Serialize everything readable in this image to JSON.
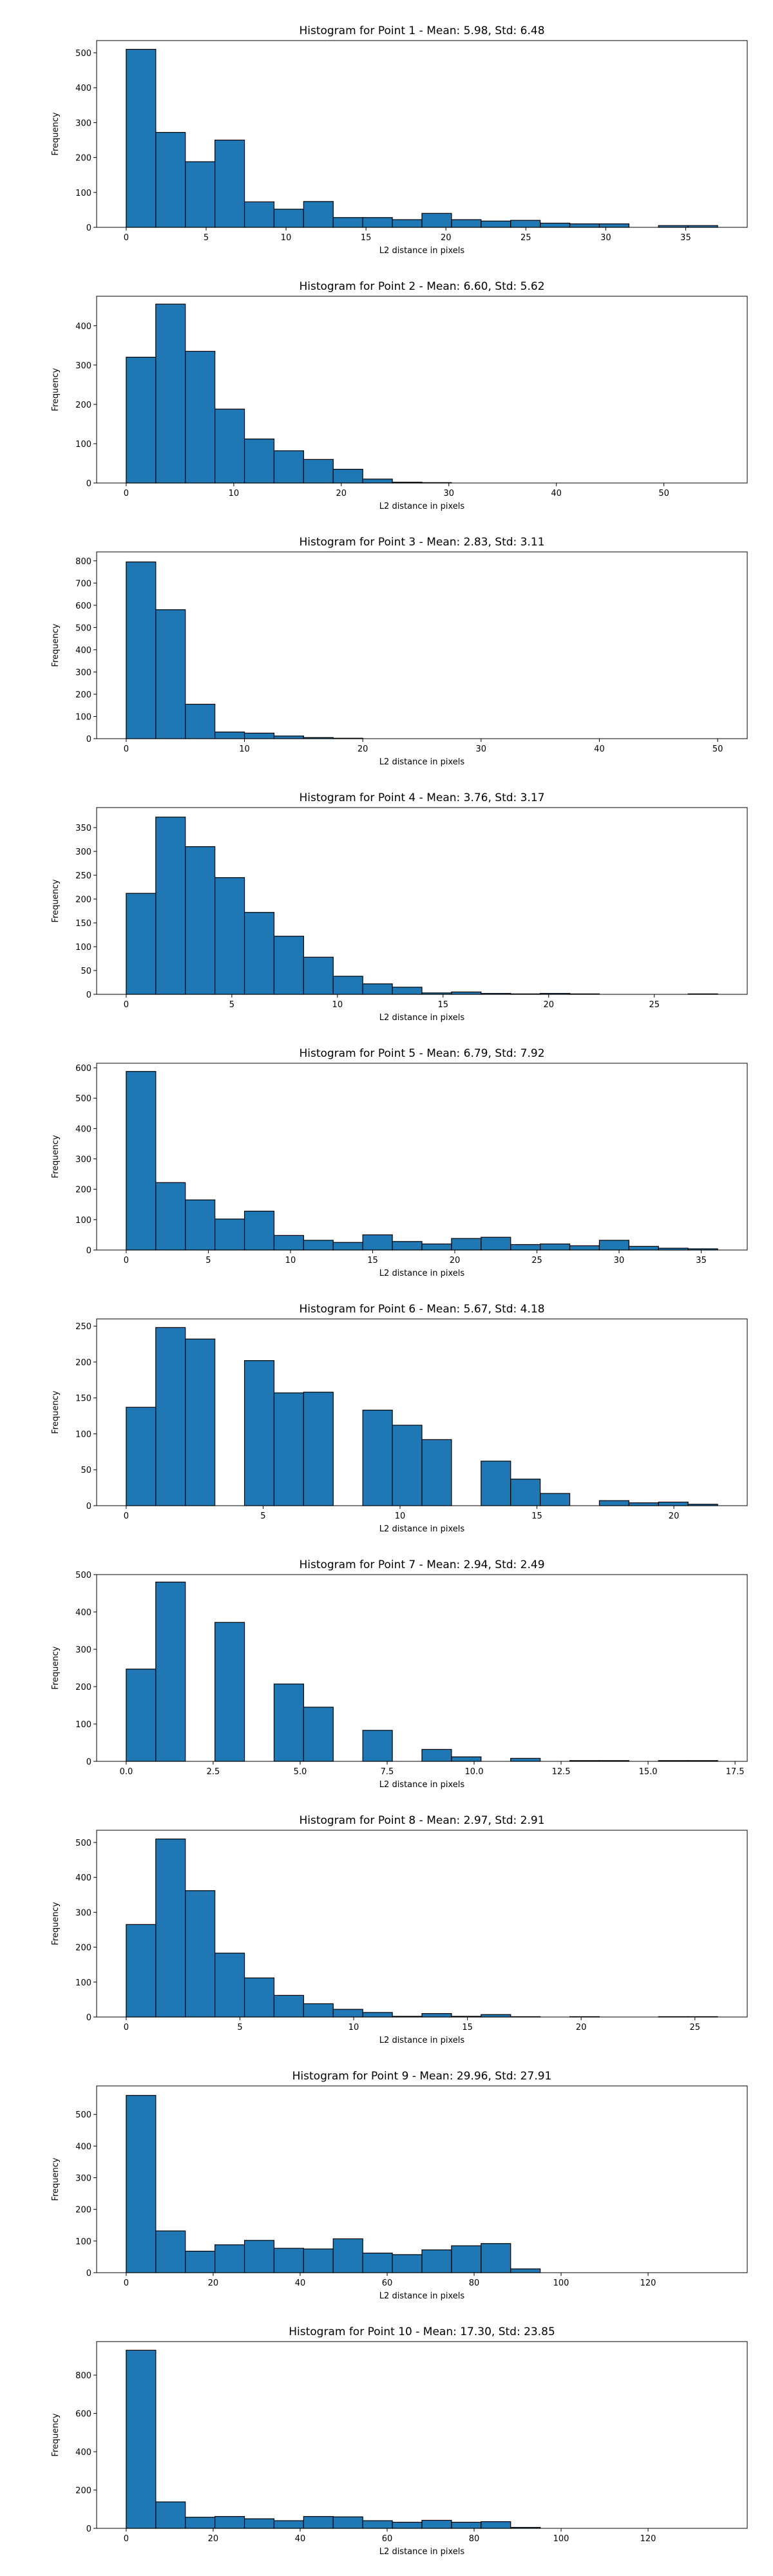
{
  "chart_data": [
    {
      "type": "bar",
      "title": "Histogram for Point 1 - Mean: 5.98, Std: 6.48",
      "xlabel": "L2 distance in pixels",
      "ylabel": "Frequency",
      "xlim": [
        -1.85,
        38.85
      ],
      "ylim": [
        0,
        535
      ],
      "xticks": [
        0,
        5,
        10,
        15,
        20,
        25,
        30,
        35
      ],
      "xtick_labels": [
        "0",
        "5",
        "10",
        "15",
        "20",
        "25",
        "30",
        "35"
      ],
      "yticks": [
        0,
        100,
        200,
        300,
        400,
        500
      ],
      "ytick_labels": [
        "0",
        "100",
        "200",
        "300",
        "400",
        "500"
      ],
      "bin_start": 0,
      "bin_width": 1.85,
      "values": [
        510,
        272,
        188,
        250,
        73,
        52,
        74,
        28,
        28,
        22,
        40,
        22,
        18,
        20,
        12,
        10,
        10,
        0,
        5,
        5
      ]
    },
    {
      "type": "bar",
      "title": "Histogram for Point 2 - Mean: 6.60, Std: 5.62",
      "xlabel": "L2 distance in pixels",
      "ylabel": "Frequency",
      "xlim": [
        -2.75,
        57.75
      ],
      "ylim": [
        0,
        475
      ],
      "xticks": [
        0,
        10,
        20,
        30,
        40,
        50
      ],
      "xtick_labels": [
        "0",
        "10",
        "20",
        "30",
        "40",
        "50"
      ],
      "yticks": [
        0,
        100,
        200,
        300,
        400
      ],
      "ytick_labels": [
        "0",
        "100",
        "200",
        "300",
        "400"
      ],
      "bin_start": 0,
      "bin_width": 2.75,
      "values": [
        320,
        455,
        335,
        188,
        112,
        82,
        60,
        35,
        10,
        2,
        1,
        0,
        0,
        0,
        0,
        0,
        0,
        0,
        0,
        0
      ]
    },
    {
      "type": "bar",
      "title": "Histogram for Point 3 - Mean: 2.83, Std: 3.11",
      "xlabel": "L2 distance in pixels",
      "ylabel": "Frequency",
      "xlim": [
        -2.5,
        52.5
      ],
      "ylim": [
        0,
        840
      ],
      "xticks": [
        0,
        10,
        20,
        30,
        40,
        50
      ],
      "xtick_labels": [
        "0",
        "10",
        "20",
        "30",
        "40",
        "50"
      ],
      "yticks": [
        0,
        100,
        200,
        300,
        400,
        500,
        600,
        700,
        800
      ],
      "ytick_labels": [
        "0",
        "100",
        "200",
        "300",
        "400",
        "500",
        "600",
        "700",
        "800"
      ],
      "bin_start": 0,
      "bin_width": 2.5,
      "values": [
        795,
        580,
        155,
        30,
        25,
        12,
        5,
        2,
        0,
        0,
        0,
        0,
        0,
        0,
        0,
        0,
        0,
        0,
        0,
        0
      ]
    },
    {
      "type": "bar",
      "title": "Histogram for Point 4 - Mean: 3.76, Std: 3.17",
      "xlabel": "L2 distance in pixels",
      "ylabel": "Frequency",
      "xlim": [
        -1.4,
        29.4
      ],
      "ylim": [
        0,
        392
      ],
      "xticks": [
        0,
        5,
        10,
        15,
        20,
        25
      ],
      "xtick_labels": [
        "0",
        "5",
        "10",
        "15",
        "20",
        "25"
      ],
      "yticks": [
        0,
        50,
        100,
        150,
        200,
        250,
        300,
        350
      ],
      "ytick_labels": [
        "0",
        "50",
        "100",
        "150",
        "200",
        "250",
        "300",
        "350"
      ],
      "bin_start": 0,
      "bin_width": 1.4,
      "values": [
        212,
        372,
        310,
        245,
        172,
        122,
        78,
        38,
        22,
        15,
        3,
        5,
        2,
        1,
        2,
        1,
        0,
        0,
        0,
        1
      ]
    },
    {
      "type": "bar",
      "title": "Histogram for Point 5 - Mean: 6.79, Std: 7.92",
      "xlabel": "L2 distance in pixels",
      "ylabel": "Frequency",
      "xlim": [
        -1.8,
        37.8
      ],
      "ylim": [
        0,
        615
      ],
      "xticks": [
        0,
        5,
        10,
        15,
        20,
        25,
        30,
        35
      ],
      "xtick_labels": [
        "0",
        "5",
        "10",
        "15",
        "20",
        "25",
        "30",
        "35"
      ],
      "yticks": [
        0,
        100,
        200,
        300,
        400,
        500,
        600
      ],
      "ytick_labels": [
        "0",
        "100",
        "200",
        "300",
        "400",
        "500",
        "600"
      ],
      "bin_start": 0,
      "bin_width": 1.8,
      "values": [
        588,
        222,
        165,
        102,
        128,
        48,
        32,
        25,
        50,
        28,
        20,
        38,
        42,
        18,
        20,
        14,
        32,
        12,
        6,
        4
      ]
    },
    {
      "type": "bar",
      "title": "Histogram for Point 6 - Mean: 5.67, Std: 4.18",
      "xlabel": "L2 distance in pixels",
      "ylabel": "Frequency",
      "xlim": [
        -1.08,
        22.68
      ],
      "ylim": [
        0,
        260
      ],
      "xticks": [
        0,
        5,
        10,
        15,
        20
      ],
      "xtick_labels": [
        "0",
        "5",
        "10",
        "15",
        "20"
      ],
      "yticks": [
        0,
        50,
        100,
        150,
        200,
        250
      ],
      "ytick_labels": [
        "0",
        "50",
        "100",
        "150",
        "200",
        "250"
      ],
      "bin_start": 0,
      "bin_width": 1.08,
      "values": [
        137,
        248,
        232,
        0,
        202,
        157,
        158,
        0,
        133,
        112,
        92,
        0,
        62,
        37,
        17,
        0,
        7,
        4,
        5,
        2
      ]
    },
    {
      "type": "bar",
      "title": "Histogram for Point 7 - Mean: 2.94, Std: 2.49",
      "xlabel": "L2 distance in pixels",
      "ylabel": "Frequency",
      "xlim": [
        -0.85,
        17.85
      ],
      "ylim": [
        0,
        500
      ],
      "xticks": [
        0,
        2.5,
        5,
        7.5,
        10,
        12.5,
        15,
        17.5
      ],
      "xtick_labels": [
        "0.0",
        "2.5",
        "5.0",
        "7.5",
        "10.0",
        "12.5",
        "15.0",
        "17.5"
      ],
      "yticks": [
        0,
        100,
        200,
        300,
        400,
        500
      ],
      "ytick_labels": [
        "0",
        "100",
        "200",
        "300",
        "400",
        "500"
      ],
      "bin_start": 0,
      "bin_width": 0.85,
      "values": [
        247,
        480,
        0,
        372,
        0,
        207,
        145,
        0,
        83,
        0,
        32,
        12,
        0,
        8,
        0,
        2,
        2,
        0,
        2,
        2
      ]
    },
    {
      "type": "bar",
      "title": "Histogram for Point 8 - Mean: 2.97, Std: 2.91",
      "xlabel": "L2 distance in pixels",
      "ylabel": "Frequency",
      "xlim": [
        -1.3,
        27.3
      ],
      "ylim": [
        0,
        535
      ],
      "xticks": [
        0,
        5,
        10,
        15,
        20,
        25
      ],
      "xtick_labels": [
        "0",
        "5",
        "10",
        "15",
        "20",
        "25"
      ],
      "yticks": [
        0,
        100,
        200,
        300,
        400,
        500
      ],
      "ytick_labels": [
        "0",
        "100",
        "200",
        "300",
        "400",
        "500"
      ],
      "bin_start": 0,
      "bin_width": 1.3,
      "values": [
        265,
        510,
        362,
        183,
        112,
        62,
        38,
        22,
        13,
        2,
        10,
        2,
        7,
        1,
        0,
        1,
        0,
        0,
        1,
        1
      ]
    },
    {
      "type": "bar",
      "title": "Histogram for Point 9 - Mean: 29.96, Std: 27.91",
      "xlabel": "L2 distance in pixels",
      "ylabel": "Frequency",
      "xlim": [
        -6.8,
        142.8
      ],
      "ylim": [
        0,
        590
      ],
      "xticks": [
        0,
        20,
        40,
        60,
        80,
        100,
        120
      ],
      "xtick_labels": [
        "0",
        "20",
        "40",
        "60",
        "80",
        "100",
        "120"
      ],
      "yticks": [
        0,
        100,
        200,
        300,
        400,
        500
      ],
      "ytick_labels": [
        "0",
        "100",
        "200",
        "300",
        "400",
        "500"
      ],
      "bin_start": 0,
      "bin_width": 6.8,
      "values": [
        560,
        132,
        68,
        88,
        102,
        77,
        75,
        107,
        62,
        57,
        72,
        85,
        92,
        12,
        0,
        0,
        0,
        0,
        0,
        0
      ]
    },
    {
      "type": "bar",
      "title": "Histogram for Point 10 - Mean: 17.30, Std: 23.85",
      "xlabel": "L2 distance in pixels",
      "ylabel": "Frequency",
      "xlim": [
        -6.8,
        142.8
      ],
      "ylim": [
        0,
        975
      ],
      "xticks": [
        0,
        20,
        40,
        60,
        80,
        100,
        120
      ],
      "xtick_labels": [
        "0",
        "20",
        "40",
        "60",
        "80",
        "100",
        "120"
      ],
      "yticks": [
        0,
        200,
        400,
        600,
        800
      ],
      "ytick_labels": [
        "0",
        "200",
        "400",
        "600",
        "800"
      ],
      "bin_start": 0,
      "bin_width": 6.8,
      "values": [
        930,
        138,
        58,
        62,
        50,
        40,
        62,
        60,
        40,
        32,
        42,
        32,
        35,
        5,
        0,
        0,
        0,
        0,
        0,
        0
      ]
    }
  ]
}
